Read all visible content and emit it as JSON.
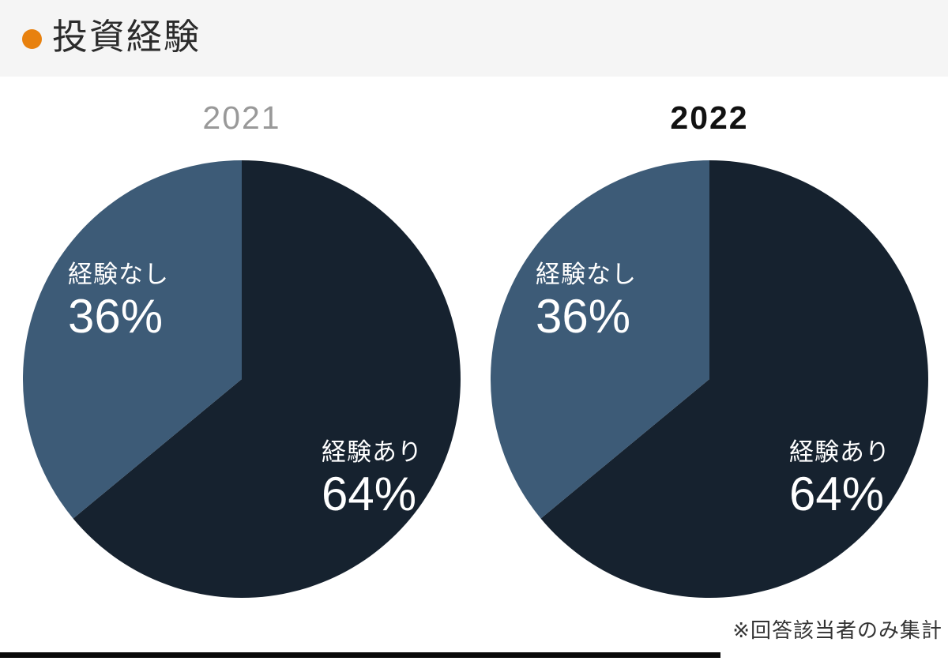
{
  "header": {
    "title": "投資経験",
    "bullet_color": "#e8810e",
    "background": "#f5f5f5"
  },
  "chart_data": [
    {
      "type": "pie",
      "title": "2021",
      "title_color": "#999999",
      "labels": [
        "経験あり",
        "経験なし"
      ],
      "values": [
        64,
        36
      ],
      "pct_labels": [
        "64%",
        "36%"
      ],
      "colors": [
        "#16222f",
        "#3d5b77"
      ],
      "label_color": "#ffffff",
      "start_angle_deg": 0,
      "direction": "clockwise",
      "legend_position": "inside"
    },
    {
      "type": "pie",
      "title": "2022",
      "title_color": "#111111",
      "labels": [
        "経験あり",
        "経験なし"
      ],
      "values": [
        64,
        36
      ],
      "pct_labels": [
        "64%",
        "36%"
      ],
      "colors": [
        "#16222f",
        "#3d5b77"
      ],
      "label_color": "#ffffff",
      "start_angle_deg": 0,
      "direction": "clockwise",
      "legend_position": "inside"
    }
  ],
  "footnote": "※回答該当者のみ集計",
  "accents": {
    "bottom_bar_color": "#0a0a0a"
  }
}
